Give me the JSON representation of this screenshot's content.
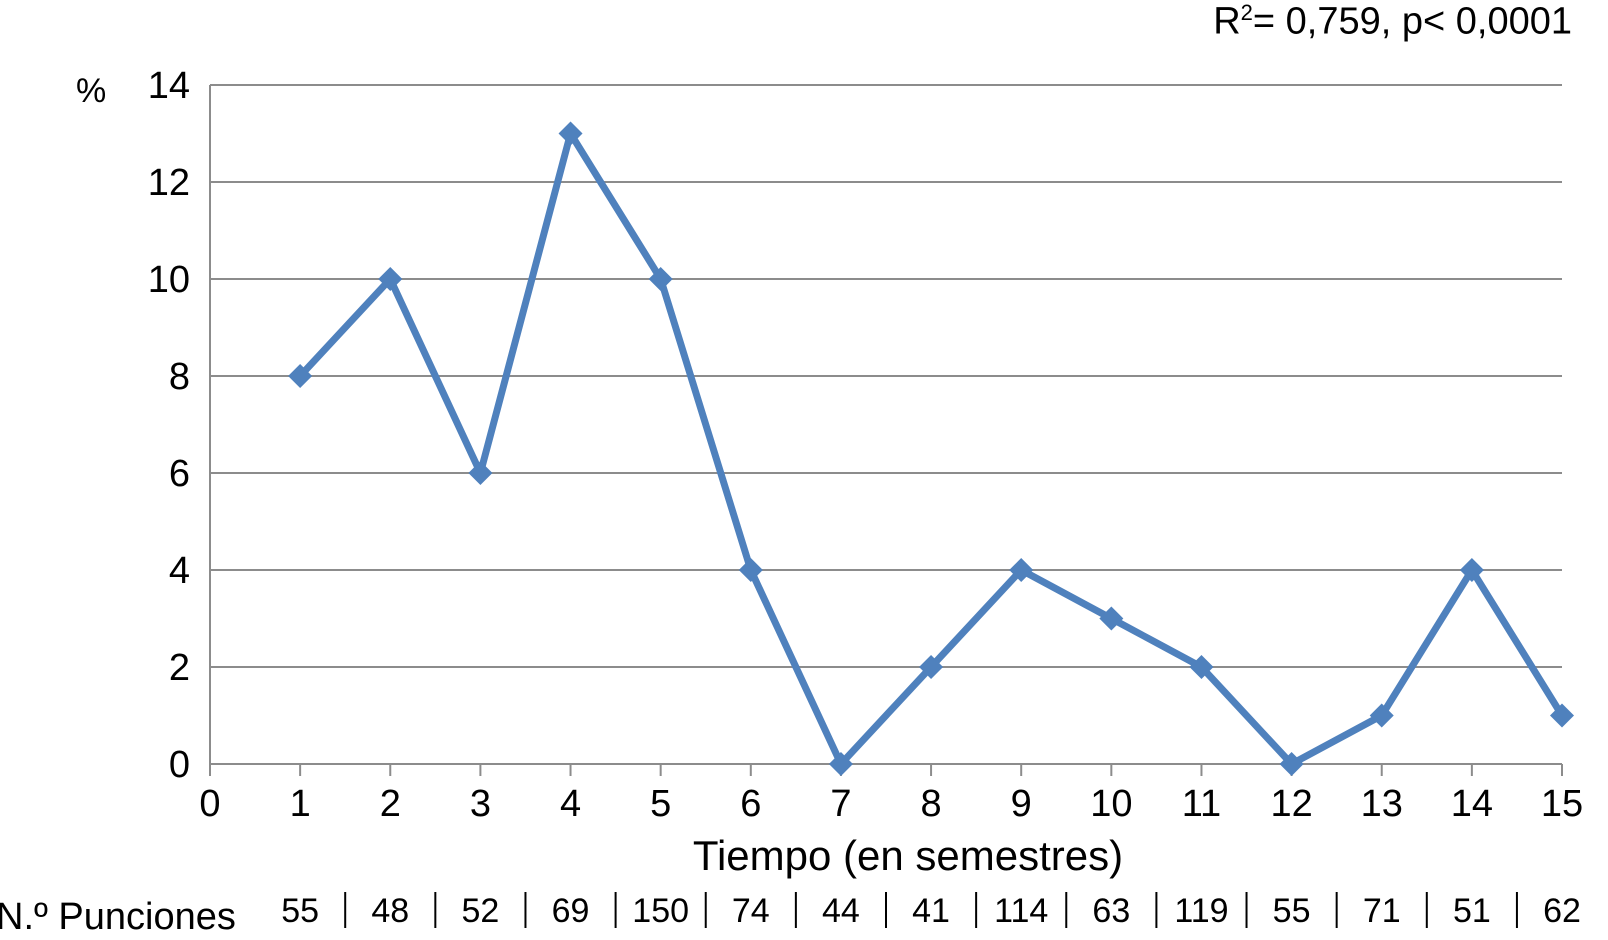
{
  "annotation": {
    "prefix": "R",
    "superscript": "2",
    "suffix": "= 0,759, p< 0,0001"
  },
  "chart_data": {
    "type": "line",
    "title": "",
    "ylabel": "%",
    "xlabel": "Tiempo (en semestres)",
    "x": [
      1,
      2,
      3,
      4,
      5,
      6,
      7,
      8,
      9,
      10,
      11,
      12,
      13,
      14,
      15
    ],
    "series": [
      {
        "values": [
          8,
          10,
          6,
          13,
          10,
          4,
          0,
          2,
          4,
          3,
          2,
          0,
          1,
          4,
          1
        ]
      }
    ],
    "xlim": [
      0,
      15
    ],
    "ylim": [
      0,
      14
    ],
    "x_ticks": [
      "0",
      "1",
      "2",
      "3",
      "4",
      "5",
      "6",
      "7",
      "8",
      "9",
      "10",
      "11",
      "12",
      "13",
      "14",
      "15"
    ],
    "y_ticks": [
      "0",
      "2",
      "4",
      "6",
      "8",
      "10",
      "12",
      "14"
    ],
    "grid": true,
    "legend": "none",
    "color": "#4F81BD"
  },
  "punciones": {
    "label": "N.º Punciones",
    "values": [
      "55",
      "48",
      "52",
      "69",
      "150",
      "74",
      "44",
      "41",
      "114",
      "63",
      "119",
      "55",
      "71",
      "51",
      "62"
    ]
  }
}
